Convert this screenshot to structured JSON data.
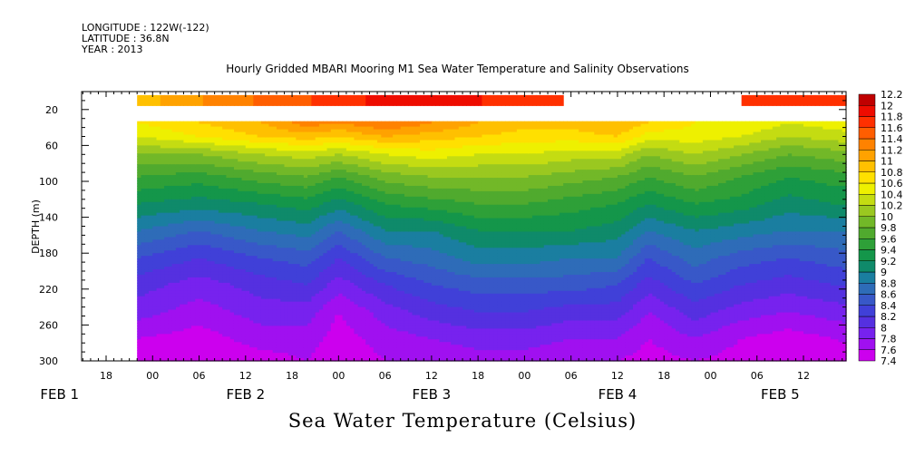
{
  "meta": {
    "longitude": "LONGITUDE : 122W(-122)",
    "latitude": "LATITUDE : 36.8N",
    "year": "YEAR : 2013"
  },
  "caption": "Sea Water Temperature (Celsius)",
  "chart_data": {
    "type": "heatmap",
    "title": "Hourly Gridded MBARI Mooring M1 Sea Water Temperature and Salinity Observations",
    "ylabel": "DEPTH (m)",
    "xlabel": "",
    "y_axis": {
      "range": [
        0,
        300
      ],
      "inverted": true,
      "ticks": [
        "20",
        "60",
        "100",
        "140",
        "180",
        "220",
        "260",
        "300"
      ]
    },
    "x_axis": {
      "hour_ticks": [
        {
          "hours": 18,
          "label": "18"
        },
        {
          "hours": 24,
          "label": "00"
        },
        {
          "hours": 30,
          "label": "06"
        },
        {
          "hours": 36,
          "label": "12"
        },
        {
          "hours": 42,
          "label": "18"
        },
        {
          "hours": 48,
          "label": "00"
        },
        {
          "hours": 54,
          "label": "06"
        },
        {
          "hours": 60,
          "label": "12"
        },
        {
          "hours": 66,
          "label": "18"
        },
        {
          "hours": 72,
          "label": "00"
        },
        {
          "hours": 78,
          "label": "06"
        },
        {
          "hours": 84,
          "label": "12"
        },
        {
          "hours": 90,
          "label": "18"
        },
        {
          "hours": 96,
          "label": "00"
        },
        {
          "hours": 102,
          "label": "06"
        },
        {
          "hours": 108,
          "label": "12"
        }
      ],
      "day_labels": [
        {
          "hours": 12,
          "label": "FEB  1"
        },
        {
          "hours": 36,
          "label": "FEB  2"
        },
        {
          "hours": 60,
          "label": "FEB  3"
        },
        {
          "hours": 84,
          "label": "FEB  4"
        },
        {
          "hours": 105,
          "label": "FEB  5"
        }
      ]
    },
    "data_start_hours": 22,
    "colorbar": {
      "levels": [
        "7.4",
        "7.6",
        "7.8",
        "8",
        "8.2",
        "8.4",
        "8.6",
        "8.8",
        "9",
        "9.2",
        "9.4",
        "9.6",
        "9.8",
        "10",
        "10.2",
        "10.4",
        "10.6",
        "10.8",
        "11",
        "11.2",
        "11.4",
        "11.6",
        "11.8",
        "12",
        "12.2"
      ],
      "colors": [
        "#cc00ee",
        "#a010f0",
        "#7722ee",
        "#5530e0",
        "#4040d8",
        "#3858c8",
        "#2e6cb8",
        "#1a7ea0",
        "#0f8a6a",
        "#14964a",
        "#2ea038",
        "#50aa2e",
        "#72b828",
        "#9ac820",
        "#c4dc12",
        "#eef000",
        "#ffe000",
        "#ffc000",
        "#ffa200",
        "#ff8200",
        "#ff5e00",
        "#ff3000",
        "#ee0c00",
        "#c00000"
      ]
    },
    "surface_sensor": {
      "depth": 10,
      "segments": [
        {
          "start": 22,
          "end": 77,
          "temps": [
            10.9,
            11.3,
            11.6,
            11.9,
            11.8,
            11.7
          ]
        },
        {
          "start": 100,
          "end": 130,
          "temps": [
            11.7,
            11.8,
            11.8
          ]
        }
      ]
    },
    "profiles": {
      "depths": [
        35,
        50,
        70,
        95,
        125,
        155,
        185,
        215,
        245,
        275,
        300
      ],
      "times": [
        22,
        30,
        38,
        44,
        48,
        54,
        60,
        66,
        72,
        78,
        84,
        88,
        94,
        100,
        106,
        112,
        118
      ],
      "temps": [
        [
          10.6,
          10.4,
          10.0,
          9.6,
          9.2,
          8.8,
          8.4,
          8.1,
          7.9,
          7.6,
          7.5
        ],
        [
          10.8,
          10.6,
          10.0,
          9.5,
          9.1,
          8.6,
          8.2,
          7.9,
          7.7,
          7.5,
          7.4
        ],
        [
          11.0,
          10.8,
          10.2,
          9.7,
          9.2,
          8.8,
          8.4,
          8.1,
          7.9,
          7.7,
          7.5
        ],
        [
          11.3,
          10.9,
          10.3,
          9.8,
          9.3,
          8.9,
          8.5,
          8.2,
          7.9,
          7.7,
          7.6
        ],
        [
          11.2,
          10.8,
          10.2,
          9.6,
          9.1,
          8.6,
          8.2,
          7.9,
          7.6,
          7.5,
          7.4
        ],
        [
          11.4,
          11.0,
          10.4,
          9.9,
          9.4,
          9.0,
          8.6,
          8.2,
          7.9,
          7.7,
          7.6
        ],
        [
          11.2,
          10.9,
          10.5,
          10.0,
          9.5,
          9.0,
          8.7,
          8.4,
          8.1,
          7.8,
          7.6
        ],
        [
          11.0,
          10.8,
          10.4,
          10.0,
          9.6,
          9.2,
          8.9,
          8.5,
          8.2,
          7.9,
          7.7
        ],
        [
          10.9,
          10.7,
          10.4,
          10.0,
          9.6,
          9.2,
          8.9,
          8.5,
          8.2,
          7.9,
          7.7
        ],
        [
          10.9,
          10.7,
          10.3,
          9.9,
          9.5,
          9.2,
          8.8,
          8.5,
          8.1,
          7.8,
          7.6
        ],
        [
          11.0,
          10.8,
          10.3,
          9.8,
          9.4,
          9.1,
          8.8,
          8.4,
          8.1,
          7.8,
          7.6
        ],
        [
          10.8,
          10.5,
          10.0,
          9.6,
          9.2,
          8.8,
          8.4,
          8.1,
          7.8,
          7.6,
          7.5
        ],
        [
          10.6,
          10.5,
          10.2,
          9.8,
          9.4,
          9.0,
          8.7,
          8.4,
          8.1,
          7.8,
          7.6
        ],
        [
          10.6,
          10.4,
          10.0,
          9.6,
          9.3,
          8.9,
          8.5,
          8.2,
          7.9,
          7.6,
          7.5
        ],
        [
          10.4,
          10.2,
          9.8,
          9.4,
          9.1,
          8.8,
          8.4,
          8.1,
          7.8,
          7.5,
          7.4
        ],
        [
          10.5,
          10.3,
          9.9,
          9.5,
          9.2,
          8.8,
          8.5,
          8.2,
          7.9,
          7.6,
          7.5
        ],
        [
          10.6,
          10.4,
          10.0,
          9.6,
          9.2,
          8.9,
          8.6,
          8.3,
          8.0,
          7.7,
          7.6
        ]
      ]
    }
  }
}
